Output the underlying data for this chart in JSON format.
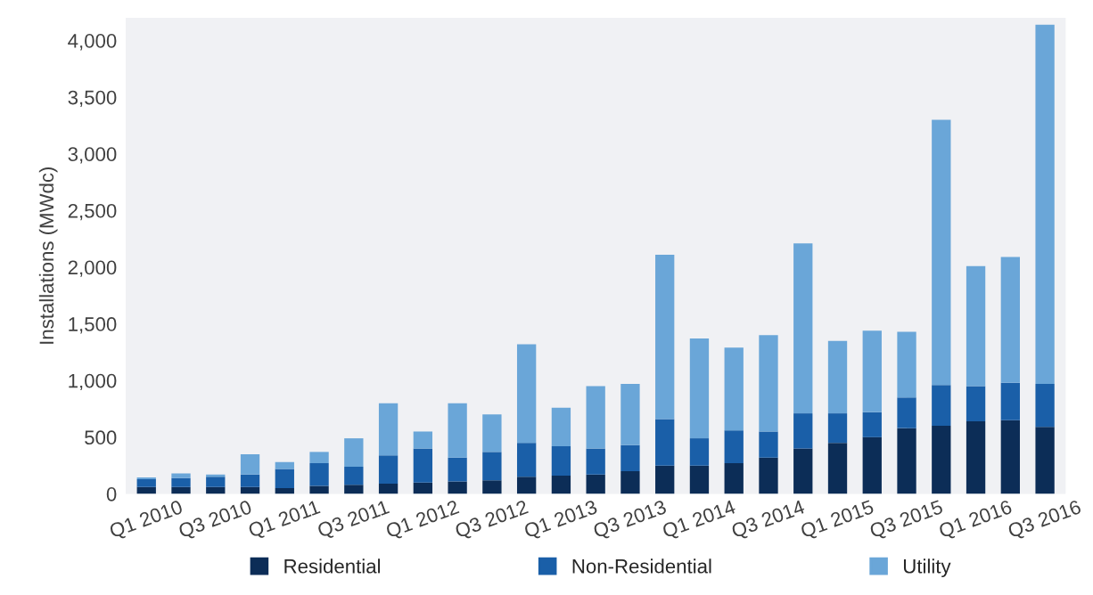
{
  "chart_data": {
    "type": "bar",
    "stacked": true,
    "ylabel": "Installations (MWdc)",
    "categories": [
      "Q1 2010",
      null,
      "Q3 2010",
      null,
      "Q1 2011",
      null,
      "Q3 2011",
      null,
      "Q1 2012",
      null,
      "Q3 2012",
      null,
      "Q1 2013",
      null,
      "Q3 2013",
      null,
      "Q1 2014",
      null,
      "Q3 2014",
      null,
      "Q1 2015",
      null,
      "Q3 2015",
      null,
      "Q1 2016",
      null,
      "Q3 2016"
    ],
    "series": [
      {
        "name": "Residential",
        "color": "#0c2d57",
        "values": [
          60,
          60,
          60,
          60,
          50,
          70,
          80,
          90,
          100,
          110,
          120,
          150,
          160,
          170,
          200,
          250,
          250,
          270,
          320,
          400,
          450,
          500,
          580,
          600,
          640,
          650,
          590
        ]
      },
      {
        "name": "Non-Residential",
        "color": "#1a5fa8",
        "values": [
          70,
          80,
          90,
          110,
          170,
          200,
          160,
          250,
          300,
          210,
          250,
          300,
          260,
          230,
          230,
          410,
          240,
          290,
          230,
          310,
          260,
          220,
          270,
          360,
          310,
          330,
          380
        ]
      },
      {
        "name": "Utility",
        "color": "#6aa6d8",
        "values": [
          15,
          40,
          20,
          180,
          60,
          100,
          250,
          460,
          150,
          480,
          330,
          870,
          340,
          550,
          540,
          1450,
          880,
          730,
          850,
          1500,
          640,
          720,
          580,
          2340,
          1060,
          1110,
          3170
        ]
      }
    ],
    "ylim": [
      0,
      4200
    ],
    "yticks": [
      {
        "value": 0,
        "label": "0"
      },
      {
        "value": 500,
        "label": "500"
      },
      {
        "value": 1000,
        "label": "1,000"
      },
      {
        "value": 1500,
        "label": "1,500"
      },
      {
        "value": 2000,
        "label": "2,000"
      },
      {
        "value": 2500,
        "label": "2,500"
      },
      {
        "value": 3000,
        "label": "3,000"
      },
      {
        "value": 3500,
        "label": "3,500"
      },
      {
        "value": 4000,
        "label": "4,000"
      }
    ],
    "legend": "bottom"
  }
}
